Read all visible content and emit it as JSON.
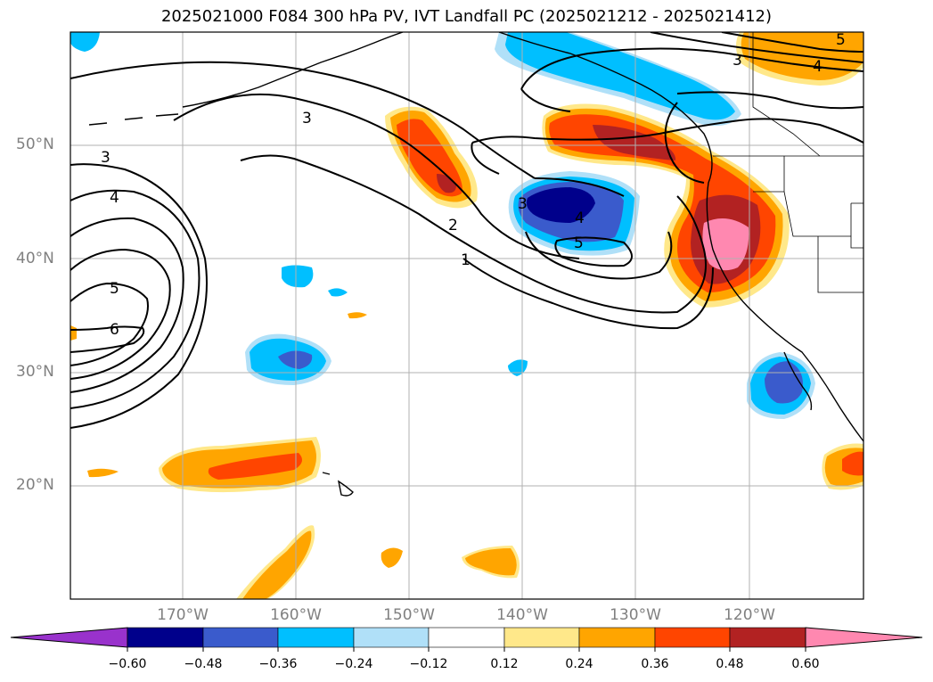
{
  "title": "2025021000 F084 300 hPa PV, IVT Landfall PC (2025021212 - 2025021412)",
  "lat_labels": [
    "50°N",
    "40°N",
    "30°N",
    "20°N"
  ],
  "lon_labels": [
    "170°W",
    "160°W",
    "150°W",
    "140°W",
    "130°W",
    "120°W"
  ],
  "contour_labels": [
    "5",
    "4",
    "3",
    "3",
    "3",
    "4",
    "5",
    "6",
    "2",
    "1",
    "3",
    "4",
    "5"
  ],
  "colorbar": {
    "ticks": [
      "−0.60",
      "−0.48",
      "−0.36",
      "−0.24",
      "−0.12",
      "0.12",
      "0.24",
      "0.36",
      "0.48",
      "0.60"
    ],
    "colors": [
      "#9932cc",
      "#00008b",
      "#3a5bcc",
      "#00bfff",
      "#b0e0f8",
      "#ffffff",
      "#ffe88a",
      "#ffa500",
      "#ff4500",
      "#b22222",
      "#ff88b0"
    ]
  },
  "icons": {
    "coastline": "coastline-outline",
    "graticule": "grid-lines"
  }
}
